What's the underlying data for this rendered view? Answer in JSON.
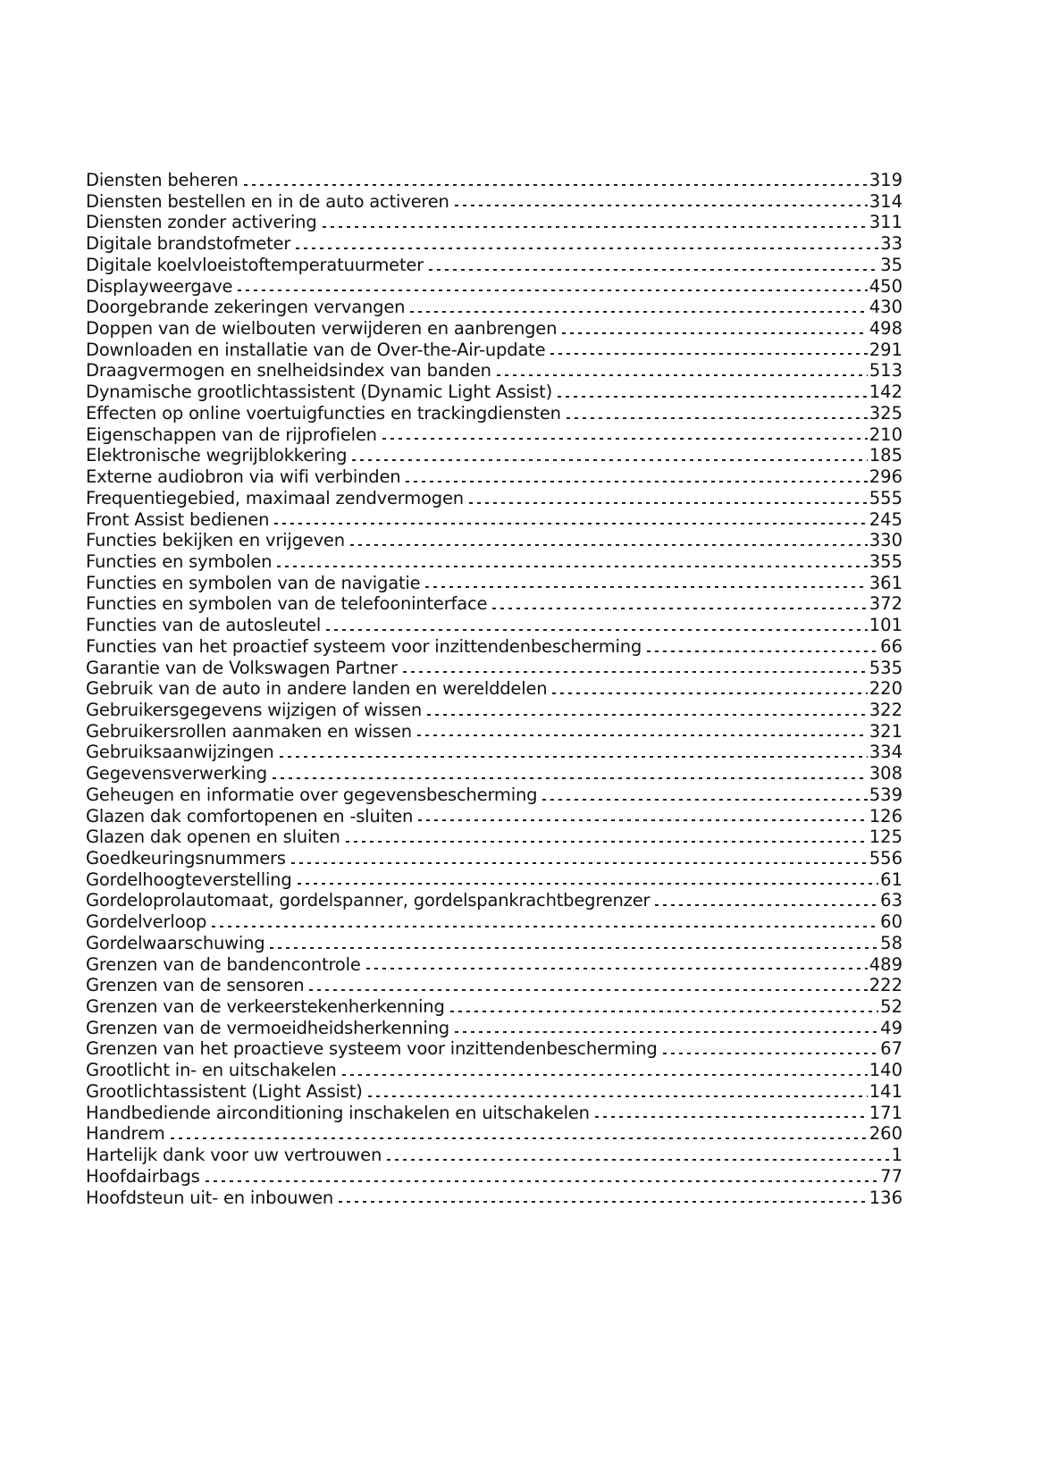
{
  "entries": [
    {
      "term": "Diensten beheren",
      "page": "319"
    },
    {
      "term": "Diensten bestellen en in de auto activeren",
      "page": "314"
    },
    {
      "term": "Diensten zonder activering",
      "page": "311"
    },
    {
      "term": "Digitale brandstofmeter",
      "page": "33"
    },
    {
      "term": "Digitale koelvloeistoftemperatuurmeter",
      "page": "35"
    },
    {
      "term": "Displayweergave",
      "page": "450"
    },
    {
      "term": "Doorgebrande zekeringen vervangen",
      "page": "430"
    },
    {
      "term": "Doppen van de wielbouten verwijderen en aanbrengen",
      "page": "498"
    },
    {
      "term": "Downloaden en installatie van de Over-the-Air-update",
      "page": "291"
    },
    {
      "term": "Draagvermogen en snelheidsindex van banden",
      "page": "513"
    },
    {
      "term": "Dynamische grootlichtassistent (Dynamic Light Assist)",
      "page": "142"
    },
    {
      "term": "Effecten op online voertuigfuncties en trackingdiensten",
      "page": "325"
    },
    {
      "term": "Eigenschappen van de rijprofielen",
      "page": "210"
    },
    {
      "term": "Elektronische wegrijblokkering",
      "page": "185"
    },
    {
      "term": "Externe audiobron via wifi verbinden",
      "page": "296"
    },
    {
      "term": "Frequentiegebied, maximaal zendvermogen",
      "page": "555"
    },
    {
      "term": "Front Assist bedienen",
      "page": "245"
    },
    {
      "term": "Functies bekijken en vrijgeven",
      "page": "330"
    },
    {
      "term": "Functies en symbolen",
      "page": "355"
    },
    {
      "term": "Functies en symbolen van de navigatie",
      "page": "361"
    },
    {
      "term": "Functies en symbolen van de telefooninterface",
      "page": "372"
    },
    {
      "term": "Functies van de autosleutel",
      "page": "101"
    },
    {
      "term": "Functies van het proactief systeem voor inzittendenbescherming",
      "page": "66"
    },
    {
      "term": "Garantie van de Volkswagen Partner",
      "page": "535"
    },
    {
      "term": "Gebruik van de auto in andere landen en werelddelen",
      "page": "220"
    },
    {
      "term": "Gebruikersgegevens wijzigen of wissen",
      "page": "322"
    },
    {
      "term": "Gebruikersrollen aanmaken en wissen",
      "page": "321"
    },
    {
      "term": "Gebruiksaanwijzingen",
      "page": "334"
    },
    {
      "term": "Gegevensverwerking",
      "page": "308"
    },
    {
      "term": "Geheugen en informatie over gegevensbescherming",
      "page": "539"
    },
    {
      "term": "Glazen dak comfortopenen en -sluiten",
      "page": "126"
    },
    {
      "term": "Glazen dak openen en sluiten",
      "page": "125"
    },
    {
      "term": "Goedkeuringsnummers",
      "page": "556"
    },
    {
      "term": "Gordelhoogteverstelling",
      "page": "61"
    },
    {
      "term": "Gordeloprolautomaat, gordelspanner, gordelspankrachtbegrenzer",
      "page": "63"
    },
    {
      "term": "Gordelverloop",
      "page": "60"
    },
    {
      "term": "Gordelwaarschuwing",
      "page": "58"
    },
    {
      "term": "Grenzen van de bandencontrole",
      "page": "489"
    },
    {
      "term": "Grenzen van de sensoren",
      "page": "222"
    },
    {
      "term": "Grenzen van de verkeerstekenherkenning",
      "page": "52"
    },
    {
      "term": "Grenzen van de vermoeidheidsherkenning",
      "page": "49"
    },
    {
      "term": "Grenzen van het proactieve systeem voor inzittendenbescherming",
      "page": "67"
    },
    {
      "term": "Grootlicht in- en uitschakelen",
      "page": "140"
    },
    {
      "term": "Grootlichtassistent (Light Assist)",
      "page": "141"
    },
    {
      "term": "Handbediende airconditioning inschakelen en uitschakelen",
      "page": "171"
    },
    {
      "term": "Handrem",
      "page": "260"
    },
    {
      "term": "Hartelijk dank voor uw vertrouwen",
      "page": "1"
    },
    {
      "term": "Hoofdairbags",
      "page": "77"
    },
    {
      "term": "Hoofdsteun uit- en inbouwen",
      "page": "136"
    }
  ]
}
